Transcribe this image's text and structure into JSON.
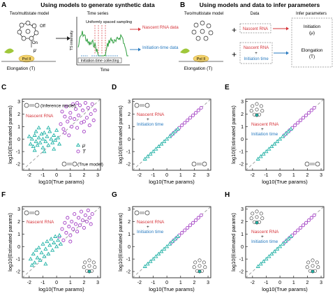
{
  "panel_A": {
    "letter": "A",
    "title": "Using models to generate synthetic data",
    "model_label": "Two/multistate model",
    "off_label": "Off",
    "on_label": "On",
    "mu_label": "μ",
    "polII_label": "Pol II",
    "elongation_label": "Elongation (T)",
    "time_series_label": "Time series",
    "sampling_label": "Uniformly spaced sampling",
    "ylabel": "TS intensity",
    "xlabel": "Time",
    "collect_label": "Initiation-time collecting",
    "out_rna_label": "Nascent RNA data",
    "out_init_label": "Initiation-time data",
    "colors": {
      "trace": "#2e9e3e",
      "red": "#d6343a",
      "blue": "#2a7bc0",
      "sample": "#d6343a"
    }
  },
  "panel_B": {
    "letter": "B",
    "title": "Using models and data to infer parameters",
    "model_label": "Two/multistate model",
    "data_header": "Data",
    "infer_header": "Infer parameters",
    "plus": "+",
    "elongation_label": "Elongation (T)",
    "polII_label": "Pol II",
    "box1": "Nascent RNA",
    "box2_line1": "Nascent RNA",
    "box2_plus": "+",
    "box2_line2": "Initiation time",
    "out1_line1": "Initiation",
    "out1_line2": "(μ)",
    "out2_line1": "Elongation",
    "out2_line2": "(T)"
  },
  "legend_text": {
    "inference_model": "(Inference model)",
    "true_model": "(True model)",
    "mu": "μ",
    "T": "T",
    "nascent_rna": "Nascent RNA",
    "plus": "+",
    "initiation_time": "Initiation time"
  },
  "colors": {
    "mu": "#1fb2a6",
    "T": "#a23cc4",
    "red": "#d6343a",
    "blue": "#2a7bc0",
    "axis": "#222222",
    "diag": "#9a9a9a"
  },
  "chart_data": [
    {
      "type": "scatter",
      "panel": "C",
      "xlabel": "log10(True params)",
      "ylabel": "log10(Estimated params)",
      "xlim": [
        -2.5,
        3.2
      ],
      "ylim": [
        -2.5,
        3.2
      ],
      "xticks": [
        -2,
        -1,
        0,
        1,
        2,
        3
      ],
      "yticks": [
        -2,
        -1,
        0,
        1,
        2,
        3
      ],
      "series": [
        {
          "name": "μ",
          "values": [
            [
              -2.0,
              0.2
            ],
            [
              -1.9,
              -0.4
            ],
            [
              -1.8,
              0.0
            ],
            [
              -1.7,
              -0.6
            ],
            [
              -1.6,
              0.3
            ],
            [
              -1.5,
              -0.2
            ],
            [
              -1.5,
              0.6
            ],
            [
              -1.4,
              -0.5
            ],
            [
              -1.3,
              0.1
            ],
            [
              -1.2,
              -0.3
            ],
            [
              -1.1,
              0.4
            ],
            [
              -1.0,
              -0.7
            ],
            [
              -1.0,
              0.0
            ],
            [
              -0.9,
              0.5
            ],
            [
              -0.8,
              -0.2
            ],
            [
              -0.7,
              0.2
            ],
            [
              -0.6,
              -0.5
            ],
            [
              -0.5,
              0.6
            ],
            [
              -0.4,
              0.0
            ],
            [
              -0.3,
              -0.3
            ],
            [
              -0.2,
              0.3
            ],
            [
              -0.1,
              -0.1
            ],
            [
              0.0,
              0.7
            ],
            [
              0.1,
              0.1
            ],
            [
              0.2,
              -0.4
            ],
            [
              -1.6,
              -0.9
            ],
            [
              -0.9,
              -1.0
            ],
            [
              -0.2,
              -0.8
            ],
            [
              -1.3,
              0.9
            ],
            [
              -0.6,
              0.9
            ]
          ]
        },
        {
          "name": "T",
          "values": [
            [
              0.3,
              1.2
            ],
            [
              0.4,
              2.2
            ],
            [
              0.5,
              0.8
            ],
            [
              0.6,
              1.8
            ],
            [
              0.7,
              2.6
            ],
            [
              0.8,
              1.4
            ],
            [
              0.9,
              0.3
            ],
            [
              1.0,
              2.1
            ],
            [
              1.1,
              1.0
            ],
            [
              1.2,
              2.8
            ],
            [
              1.3,
              1.6
            ],
            [
              1.4,
              2.4
            ],
            [
              1.5,
              0.9
            ],
            [
              1.6,
              1.9
            ],
            [
              1.7,
              2.7
            ],
            [
              1.8,
              1.3
            ],
            [
              1.9,
              2.3
            ],
            [
              2.0,
              0.6
            ],
            [
              2.1,
              2.9
            ],
            [
              2.2,
              1.7
            ],
            [
              2.3,
              2.5
            ],
            [
              2.4,
              1.1
            ],
            [
              2.5,
              2.0
            ],
            [
              2.6,
              2.8
            ],
            [
              2.7,
              1.5
            ],
            [
              2.8,
              2.3
            ],
            [
              1.0,
              1.7
            ],
            [
              1.5,
              2.9
            ],
            [
              2.0,
              1.4
            ],
            [
              0.6,
              0.5
            ]
          ]
        }
      ],
      "legend_markers": {
        "mu": "triangle",
        "T": "circle"
      }
    },
    {
      "type": "scatter",
      "panel": "D",
      "xlabel": "log10(True params)",
      "ylabel": "log10(Estimated params)",
      "xlim": [
        -2.5,
        3.2
      ],
      "ylim": [
        -2.5,
        3.2
      ],
      "xticks": [
        -2,
        -1,
        0,
        1,
        2,
        3
      ],
      "yticks": [
        -2,
        -1,
        0,
        1,
        2,
        3
      ],
      "series": [
        {
          "name": "μ",
          "values": [
            [
              -1.6,
              -1.6
            ],
            [
              -1.4,
              -1.4
            ],
            [
              -1.2,
              -1.2
            ],
            [
              -1.0,
              -1.0
            ],
            [
              -0.8,
              -0.8
            ],
            [
              -0.6,
              -0.6
            ],
            [
              -0.4,
              -0.4
            ],
            [
              -0.2,
              -0.2
            ],
            [
              0.0,
              0.0
            ],
            [
              0.2,
              0.2
            ],
            [
              0.4,
              0.4
            ],
            [
              0.6,
              0.6
            ],
            [
              0.8,
              0.8
            ]
          ]
        },
        {
          "name": "T",
          "values": [
            [
              0.3,
              0.3
            ],
            [
              0.5,
              0.5
            ],
            [
              0.7,
              0.7
            ],
            [
              0.9,
              0.9
            ],
            [
              1.1,
              1.1
            ],
            [
              1.3,
              1.3
            ],
            [
              1.5,
              1.5
            ],
            [
              1.7,
              1.7
            ],
            [
              1.9,
              1.9
            ],
            [
              2.1,
              2.1
            ],
            [
              2.3,
              2.3
            ],
            [
              2.5,
              2.5
            ]
          ]
        }
      ]
    },
    {
      "type": "scatter",
      "panel": "E",
      "xlabel": "log10(True params)",
      "ylabel": "log10(Estimated params)",
      "xlim": [
        -2.5,
        3.2
      ],
      "ylim": [
        -2.5,
        3.2
      ],
      "xticks": [
        -2,
        -1,
        0,
        1,
        2,
        3
      ],
      "yticks": [
        -2,
        -1,
        0,
        1,
        2,
        3
      ],
      "series": [
        {
          "name": "μ",
          "values": [
            [
              -1.6,
              -1.6
            ],
            [
              -1.4,
              -1.4
            ],
            [
              -1.2,
              -1.2
            ],
            [
              -1.0,
              -1.0
            ],
            [
              -0.8,
              -0.8
            ],
            [
              -0.6,
              -0.6
            ],
            [
              -0.4,
              -0.4
            ],
            [
              -0.2,
              -0.2
            ],
            [
              0.0,
              0.0
            ],
            [
              0.2,
              0.2
            ],
            [
              0.4,
              0.4
            ],
            [
              0.6,
              0.6
            ],
            [
              0.8,
              0.8
            ]
          ]
        },
        {
          "name": "T",
          "values": [
            [
              0.3,
              0.3
            ],
            [
              0.5,
              0.5
            ],
            [
              0.7,
              0.7
            ],
            [
              0.9,
              0.9
            ],
            [
              1.1,
              1.1
            ],
            [
              1.3,
              1.3
            ],
            [
              1.5,
              1.5
            ],
            [
              1.7,
              1.7
            ],
            [
              1.9,
              1.9
            ],
            [
              2.1,
              2.1
            ],
            [
              2.3,
              2.3
            ],
            [
              2.5,
              2.5
            ]
          ]
        }
      ]
    },
    {
      "type": "scatter",
      "panel": "F",
      "xlabel": "log10(True params)",
      "ylabel": "log10(Estimated params)",
      "xlim": [
        -2.5,
        3.2
      ],
      "ylim": [
        -2.5,
        3.2
      ],
      "xticks": [
        -2,
        -1,
        0,
        1,
        2,
        3
      ],
      "yticks": [
        -2,
        -1,
        0,
        1,
        2,
        3
      ],
      "series": [
        {
          "name": "μ",
          "values": [
            [
              -1.9,
              -1.0
            ],
            [
              -1.7,
              -0.6
            ],
            [
              -1.6,
              -1.3
            ],
            [
              -1.5,
              -0.3
            ],
            [
              -1.4,
              -0.9
            ],
            [
              -1.3,
              -0.1
            ],
            [
              -1.2,
              -1.1
            ],
            [
              -1.1,
              -0.5
            ],
            [
              -1.0,
              0.2
            ],
            [
              -0.9,
              -0.8
            ],
            [
              -0.8,
              -0.2
            ],
            [
              -0.7,
              0.4
            ],
            [
              -0.6,
              -0.6
            ],
            [
              -0.5,
              0.1
            ],
            [
              -0.4,
              0.6
            ],
            [
              -0.3,
              -0.3
            ],
            [
              -0.2,
              0.3
            ],
            [
              -0.1,
              0.8
            ],
            [
              0.0,
              0.0
            ],
            [
              0.1,
              0.5
            ],
            [
              0.2,
              0.9
            ],
            [
              -1.8,
              -1.5
            ],
            [
              -0.8,
              -1.4
            ],
            [
              0.3,
              0.2
            ]
          ]
        },
        {
          "name": "T",
          "values": [
            [
              0.2,
              0.8
            ],
            [
              0.4,
              1.4
            ],
            [
              0.5,
              0.5
            ],
            [
              0.6,
              1.9
            ],
            [
              0.7,
              1.1
            ],
            [
              0.8,
              2.3
            ],
            [
              0.9,
              1.6
            ],
            [
              1.0,
              0.9
            ],
            [
              1.1,
              2.0
            ],
            [
              1.2,
              1.4
            ],
            [
              1.3,
              2.6
            ],
            [
              1.4,
              1.8
            ],
            [
              1.5,
              1.2
            ],
            [
              1.6,
              2.3
            ],
            [
              1.7,
              1.7
            ],
            [
              1.8,
              2.8
            ],
            [
              1.9,
              2.1
            ],
            [
              2.0,
              1.5
            ],
            [
              2.1,
              2.5
            ],
            [
              2.2,
              2.0
            ],
            [
              2.3,
              2.9
            ],
            [
              2.4,
              2.3
            ],
            [
              2.5,
              1.8
            ],
            [
              2.6,
              2.6
            ],
            [
              1.0,
              0.4
            ]
          ]
        }
      ]
    },
    {
      "type": "scatter",
      "panel": "G",
      "xlabel": "log10(True params)",
      "ylabel": "log10(Estimated params)",
      "xlim": [
        -2.5,
        3.2
      ],
      "ylim": [
        -2.5,
        3.2
      ],
      "xticks": [
        -2,
        -1,
        0,
        1,
        2,
        3
      ],
      "yticks": [
        -2,
        -1,
        0,
        1,
        2,
        3
      ],
      "series": [
        {
          "name": "μ",
          "values": [
            [
              -1.6,
              -1.6
            ],
            [
              -1.4,
              -1.4
            ],
            [
              -1.2,
              -1.2
            ],
            [
              -1.0,
              -1.0
            ],
            [
              -0.8,
              -0.8
            ],
            [
              -0.6,
              -0.6
            ],
            [
              -0.4,
              -0.4
            ],
            [
              -0.2,
              -0.2
            ],
            [
              0.0,
              0.0
            ],
            [
              0.2,
              0.2
            ],
            [
              0.4,
              0.4
            ],
            [
              0.6,
              0.6
            ],
            [
              0.8,
              0.8
            ]
          ]
        },
        {
          "name": "T",
          "values": [
            [
              0.3,
              0.3
            ],
            [
              0.5,
              0.5
            ],
            [
              0.7,
              0.7
            ],
            [
              0.9,
              0.9
            ],
            [
              1.1,
              1.1
            ],
            [
              1.3,
              1.3
            ],
            [
              1.5,
              1.5
            ],
            [
              1.7,
              1.7
            ],
            [
              1.9,
              1.9
            ],
            [
              2.1,
              2.1
            ],
            [
              2.3,
              2.3
            ],
            [
              2.5,
              2.5
            ]
          ]
        }
      ]
    },
    {
      "type": "scatter",
      "panel": "H",
      "xlabel": "log10(True params)",
      "ylabel": "log10(Estimated params)",
      "xlim": [
        -2.5,
        3.2
      ],
      "ylim": [
        -2.5,
        3.2
      ],
      "xticks": [
        -2,
        -1,
        0,
        1,
        2,
        3
      ],
      "yticks": [
        -2,
        -1,
        0,
        1,
        2,
        3
      ],
      "series": [
        {
          "name": "μ",
          "values": [
            [
              -1.6,
              -1.6
            ],
            [
              -1.4,
              -1.4
            ],
            [
              -1.2,
              -1.2
            ],
            [
              -1.0,
              -1.0
            ],
            [
              -0.8,
              -0.8
            ],
            [
              -0.6,
              -0.6
            ],
            [
              -0.4,
              -0.4
            ],
            [
              -0.2,
              -0.2
            ],
            [
              0.0,
              0.0
            ],
            [
              0.2,
              0.2
            ],
            [
              0.4,
              0.4
            ],
            [
              0.6,
              0.6
            ],
            [
              0.8,
              0.8
            ]
          ]
        },
        {
          "name": "T",
          "values": [
            [
              0.3,
              0.3
            ],
            [
              0.5,
              0.5
            ],
            [
              0.7,
              0.7
            ],
            [
              0.9,
              0.9
            ],
            [
              1.1,
              1.1
            ],
            [
              1.3,
              1.3
            ],
            [
              1.5,
              1.5
            ],
            [
              1.7,
              1.7
            ],
            [
              1.9,
              1.9
            ],
            [
              2.1,
              2.1
            ],
            [
              2.3,
              2.3
            ],
            [
              2.5,
              2.5
            ]
          ]
        }
      ]
    }
  ]
}
